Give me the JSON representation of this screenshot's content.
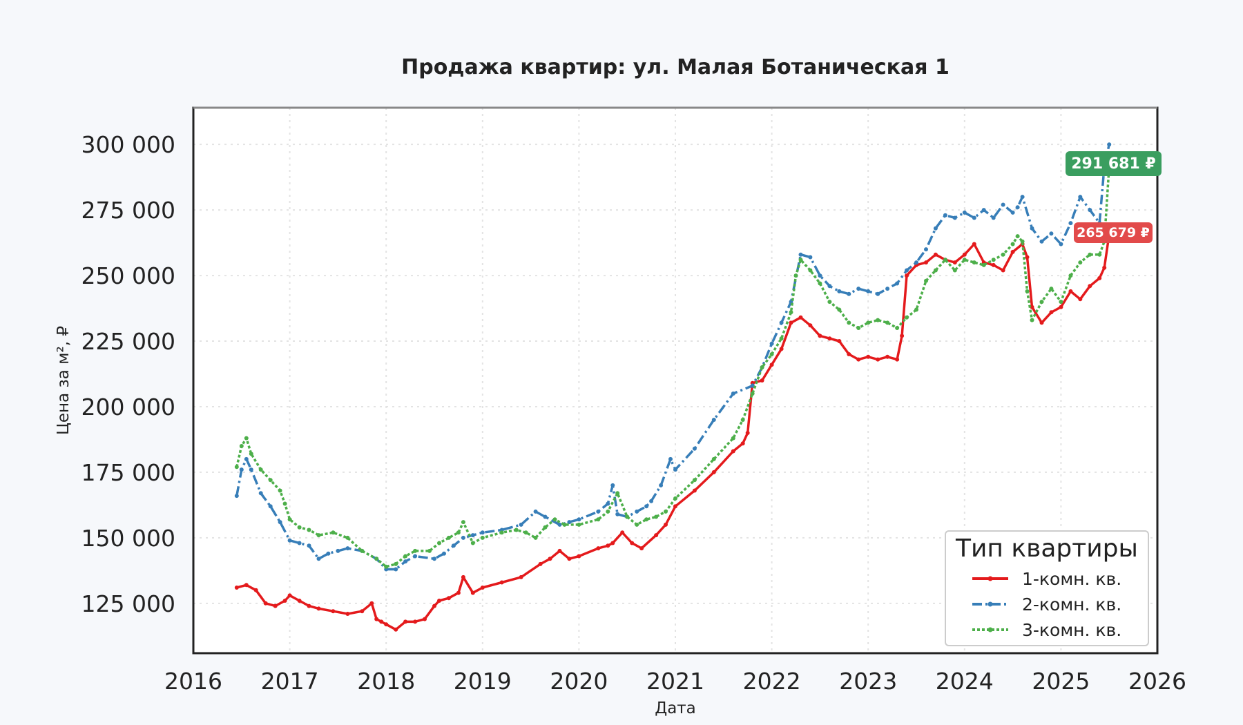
{
  "chart_data": {
    "type": "line",
    "title": "Продажа квартир: ул. Малая Ботаническая 1",
    "xlabel": "Дата",
    "ylabel": "Цена за м², ₽",
    "xlim": [
      2016,
      2026
    ],
    "ylim": [
      106000,
      314000
    ],
    "x_ticks": [
      2016,
      2017,
      2018,
      2019,
      2020,
      2021,
      2022,
      2023,
      2024,
      2025,
      2026
    ],
    "x_tick_labels": [
      "2016",
      "2017",
      "2018",
      "2019",
      "2020",
      "2021",
      "2022",
      "2023",
      "2024",
      "2025",
      "2026"
    ],
    "y_ticks": [
      125000,
      150000,
      175000,
      200000,
      225000,
      250000,
      275000,
      300000
    ],
    "y_tick_labels": [
      "125 000",
      "150 000",
      "175 000",
      "200 000",
      "225 000",
      "250 000",
      "275 000",
      "300 000"
    ],
    "grid": true,
    "legend": {
      "title": "Тип квартиры",
      "placement": "lower-right"
    },
    "series": [
      {
        "name": "1-комн. кв.",
        "color": "#e41a1c",
        "line_style": "solid",
        "x": [
          2016.45,
          2016.55,
          2016.65,
          2016.75,
          2016.85,
          2016.95,
          2017.0,
          2017.1,
          2017.2,
          2017.3,
          2017.45,
          2017.6,
          2017.75,
          2017.85,
          2017.9,
          2017.95,
          2018.0,
          2018.1,
          2018.2,
          2018.3,
          2018.4,
          2018.5,
          2018.55,
          2018.65,
          2018.75,
          2018.8,
          2018.9,
          2019.0,
          2019.2,
          2019.4,
          2019.6,
          2019.7,
          2019.8,
          2019.9,
          2020.0,
          2020.2,
          2020.3,
          2020.35,
          2020.45,
          2020.55,
          2020.65,
          2020.8,
          2020.9,
          2021.0,
          2021.2,
          2021.4,
          2021.6,
          2021.7,
          2021.75,
          2021.8,
          2021.9,
          2022.0,
          2022.1,
          2022.2,
          2022.3,
          2022.4,
          2022.5,
          2022.6,
          2022.7,
          2022.8,
          2022.9,
          2023.0,
          2023.1,
          2023.2,
          2023.3,
          2023.35,
          2023.4,
          2023.5,
          2023.6,
          2023.7,
          2023.8,
          2023.9,
          2024.0,
          2024.1,
          2024.2,
          2024.3,
          2024.4,
          2024.5,
          2024.6,
          2024.65,
          2024.7,
          2024.8,
          2024.9,
          2025.0,
          2025.1,
          2025.2,
          2025.3,
          2025.4,
          2025.45,
          2025.5
        ],
        "y": [
          131000,
          132000,
          130000,
          125000,
          124000,
          126000,
          128000,
          126000,
          124000,
          123000,
          122000,
          121000,
          122000,
          125000,
          119000,
          118000,
          117000,
          115000,
          118000,
          118000,
          119000,
          124000,
          126000,
          127000,
          129000,
          135000,
          129000,
          131000,
          133000,
          135000,
          140000,
          142000,
          145000,
          142000,
          143000,
          146000,
          147000,
          148000,
          152000,
          148000,
          146000,
          151000,
          155000,
          162000,
          168000,
          175000,
          183000,
          186000,
          190000,
          209000,
          210000,
          216000,
          222000,
          232000,
          234000,
          231000,
          227000,
          226000,
          225000,
          220000,
          218000,
          219000,
          218000,
          219000,
          218000,
          227000,
          250000,
          254000,
          255000,
          258000,
          256000,
          255000,
          258000,
          262000,
          255000,
          254000,
          252000,
          259000,
          262000,
          257000,
          238000,
          232000,
          236000,
          238000,
          244000,
          241000,
          246000,
          249000,
          253000,
          265679
        ]
      },
      {
        "name": "2-комн. кв.",
        "color": "#377eb8",
        "line_style": "dashdot",
        "x": [
          2016.45,
          2016.5,
          2016.55,
          2016.6,
          2016.7,
          2016.8,
          2016.9,
          2017.0,
          2017.1,
          2017.2,
          2017.3,
          2017.4,
          2017.5,
          2017.6,
          2017.75,
          2017.9,
          2018.0,
          2018.1,
          2018.2,
          2018.3,
          2018.5,
          2018.6,
          2018.7,
          2018.8,
          2018.9,
          2019.0,
          2019.2,
          2019.4,
          2019.55,
          2019.65,
          2019.8,
          2019.9,
          2020.0,
          2020.2,
          2020.3,
          2020.35,
          2020.4,
          2020.5,
          2020.6,
          2020.7,
          2020.75,
          2020.85,
          2020.95,
          2021.0,
          2021.2,
          2021.4,
          2021.6,
          2021.8,
          2021.9,
          2022.0,
          2022.1,
          2022.2,
          2022.3,
          2022.4,
          2022.5,
          2022.6,
          2022.7,
          2022.8,
          2022.9,
          2023.0,
          2023.1,
          2023.2,
          2023.3,
          2023.4,
          2023.5,
          2023.6,
          2023.7,
          2023.8,
          2023.9,
          2024.0,
          2024.1,
          2024.2,
          2024.3,
          2024.4,
          2024.5,
          2024.55,
          2024.6,
          2024.7,
          2024.8,
          2024.9,
          2025.0,
          2025.1,
          2025.2,
          2025.3,
          2025.4,
          2025.45,
          2025.5
        ],
        "y": [
          166000,
          176000,
          180000,
          176000,
          167000,
          162000,
          156000,
          149000,
          148000,
          147000,
          142000,
          144000,
          145000,
          146000,
          145000,
          142000,
          138000,
          138000,
          141000,
          143000,
          142000,
          144000,
          147000,
          150000,
          151000,
          152000,
          153000,
          155000,
          160000,
          158000,
          155000,
          156000,
          157000,
          160000,
          163000,
          170000,
          159000,
          158000,
          160000,
          162000,
          164000,
          170000,
          180000,
          176000,
          184000,
          195000,
          205000,
          208000,
          215000,
          224000,
          232000,
          240000,
          258000,
          257000,
          250000,
          246000,
          244000,
          243000,
          245000,
          244000,
          243000,
          245000,
          247000,
          252000,
          255000,
          260000,
          268000,
          273000,
          272000,
          274000,
          272000,
          275000,
          272000,
          277000,
          274000,
          276000,
          280000,
          268000,
          263000,
          266000,
          262000,
          270000,
          280000,
          275000,
          270000,
          291681,
          300000
        ]
      },
      {
        "name": "3-комн. кв.",
        "color": "#4daf4a",
        "line_style": "dotted",
        "x": [
          2016.45,
          2016.5,
          2016.55,
          2016.6,
          2016.7,
          2016.8,
          2016.9,
          2016.95,
          2017.0,
          2017.1,
          2017.2,
          2017.3,
          2017.45,
          2017.6,
          2017.75,
          2017.9,
          2018.0,
          2018.1,
          2018.2,
          2018.3,
          2018.45,
          2018.55,
          2018.65,
          2018.75,
          2018.8,
          2018.9,
          2019.0,
          2019.2,
          2019.35,
          2019.45,
          2019.55,
          2019.65,
          2019.75,
          2019.85,
          2020.0,
          2020.2,
          2020.3,
          2020.4,
          2020.5,
          2020.6,
          2020.7,
          2020.8,
          2020.9,
          2021.0,
          2021.2,
          2021.4,
          2021.6,
          2021.7,
          2021.8,
          2021.9,
          2022.0,
          2022.1,
          2022.2,
          2022.25,
          2022.3,
          2022.4,
          2022.5,
          2022.6,
          2022.7,
          2022.8,
          2022.9,
          2023.0,
          2023.1,
          2023.2,
          2023.3,
          2023.4,
          2023.5,
          2023.6,
          2023.7,
          2023.8,
          2023.9,
          2024.0,
          2024.1,
          2024.2,
          2024.3,
          2024.4,
          2024.5,
          2024.55,
          2024.6,
          2024.65,
          2024.7,
          2024.8,
          2024.9,
          2025.0,
          2025.1,
          2025.2,
          2025.3,
          2025.4,
          2025.45,
          2025.5
        ],
        "y": [
          177000,
          185000,
          188000,
          182000,
          176000,
          172000,
          168000,
          163000,
          157000,
          154000,
          153000,
          151000,
          152000,
          150000,
          145000,
          142000,
          139000,
          140000,
          143000,
          145000,
          145000,
          148000,
          150000,
          152000,
          156000,
          148000,
          150000,
          152000,
          153000,
          152000,
          150000,
          154000,
          157000,
          155000,
          155000,
          157000,
          160000,
          167000,
          158000,
          155000,
          157000,
          158000,
          160000,
          165000,
          172000,
          180000,
          188000,
          195000,
          205000,
          215000,
          220000,
          226000,
          236000,
          250000,
          256000,
          252000,
          247000,
          240000,
          237000,
          232000,
          230000,
          232000,
          233000,
          232000,
          230000,
          234000,
          237000,
          248000,
          252000,
          256000,
          252000,
          256000,
          255000,
          254000,
          256000,
          258000,
          262000,
          265000,
          263000,
          244000,
          233000,
          240000,
          245000,
          240000,
          250000,
          255000,
          258000,
          258000,
          263000,
          291681
        ]
      }
    ],
    "annotations": [
      {
        "text": "291 681 ₽",
        "x": 2025.5,
        "y": 291681,
        "color": "#3a9e5f"
      },
      {
        "text": "265 679 ₽",
        "x": 2025.5,
        "y": 265679,
        "color": "#e24a4a"
      }
    ]
  }
}
